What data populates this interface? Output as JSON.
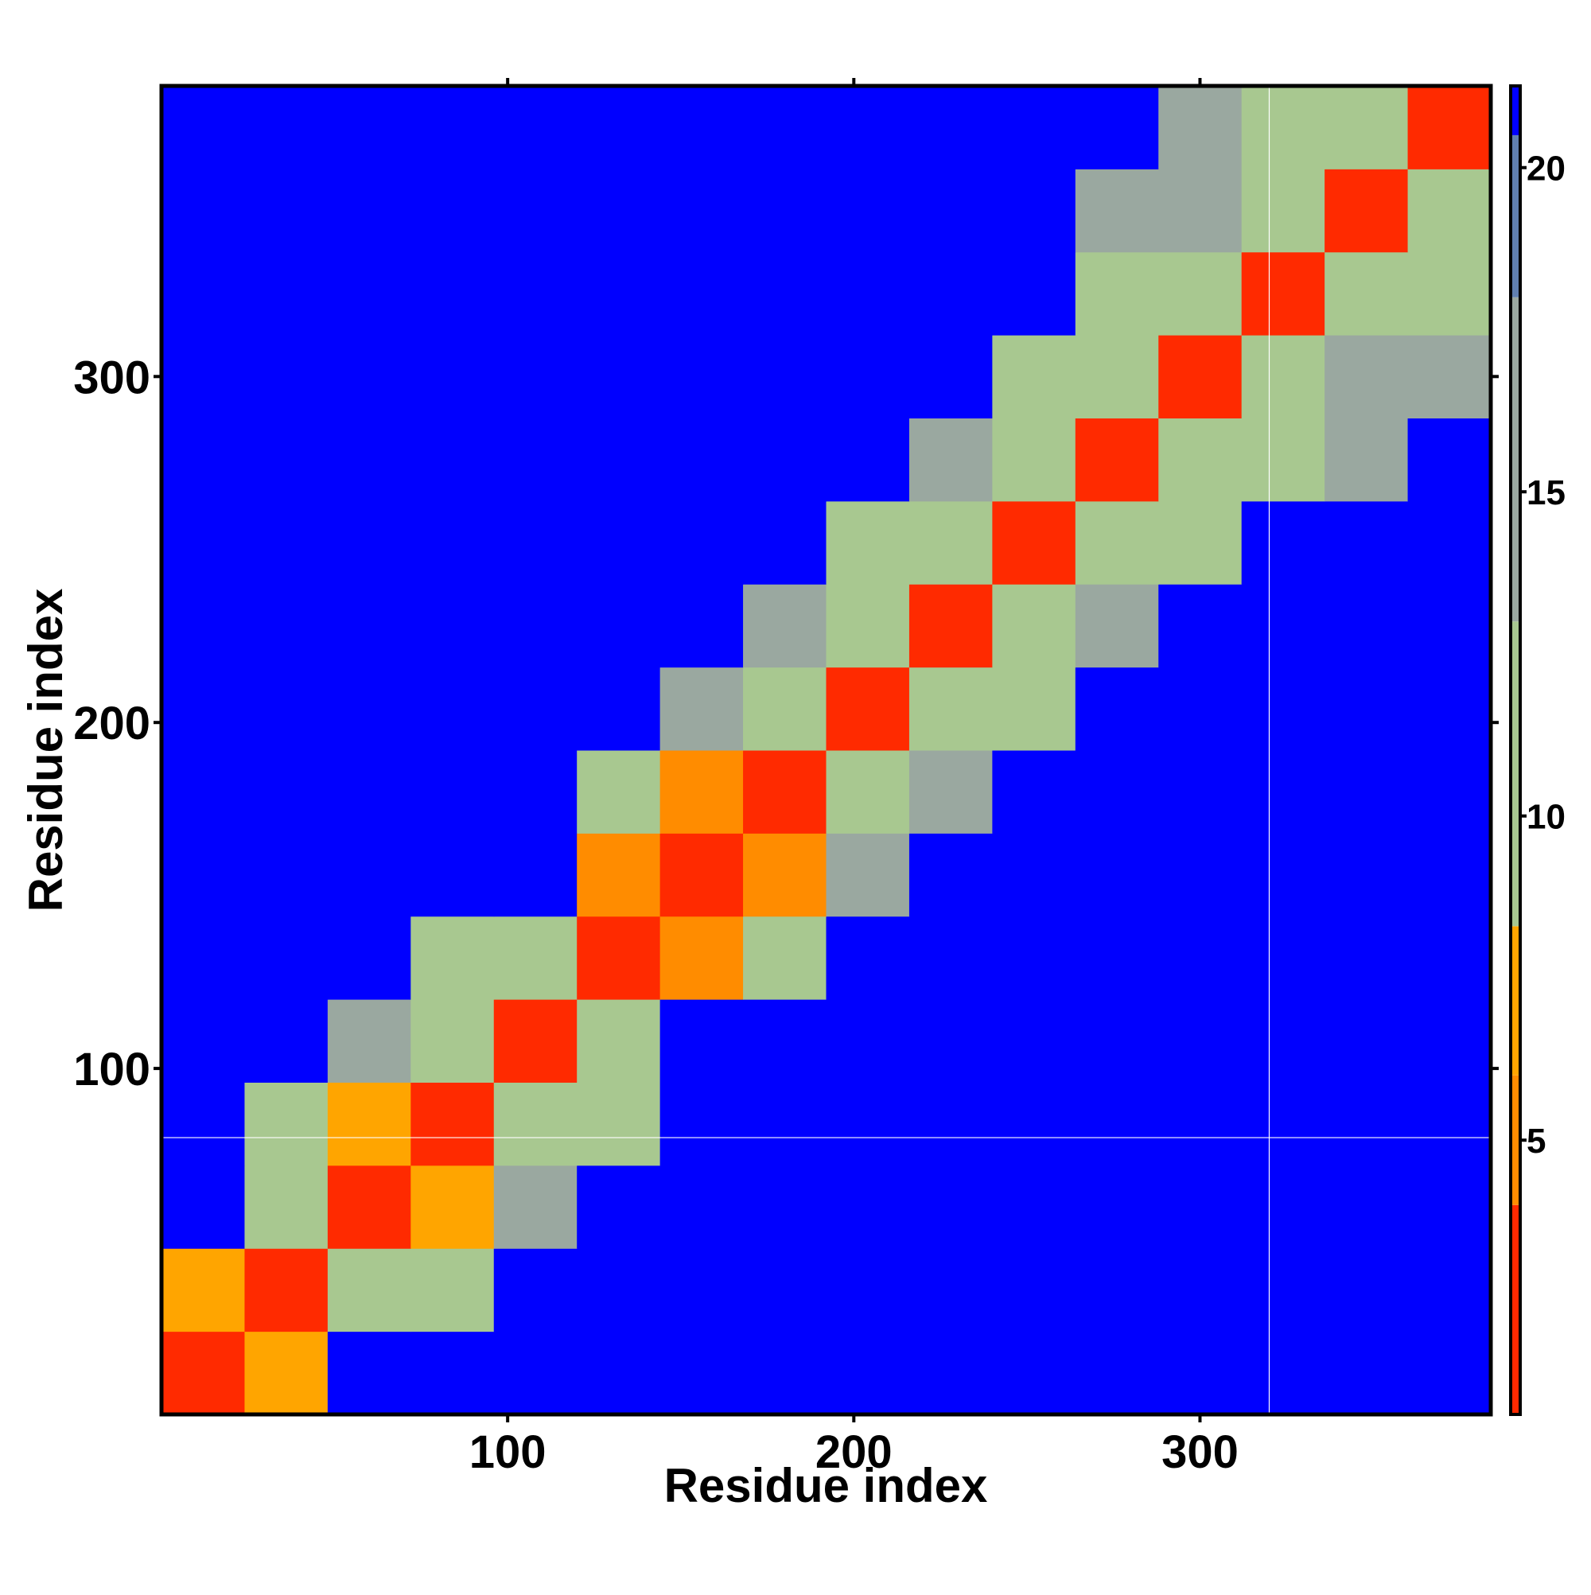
{
  "chart_data": {
    "type": "heatmap",
    "xlabel": "Residue index",
    "ylabel": "Residue index",
    "xlim": [
      0,
      384
    ],
    "ylim": [
      0,
      384
    ],
    "xticks": [
      100,
      200,
      300
    ],
    "yticks": [
      100,
      200,
      300
    ],
    "x_edges": [
      0,
      24,
      48,
      72,
      96,
      120,
      144,
      168,
      192,
      216,
      240,
      264,
      288,
      312,
      336,
      360,
      384
    ],
    "y_edges": [
      0,
      24,
      48,
      72,
      96,
      120,
      144,
      168,
      192,
      216,
      240,
      264,
      288,
      312,
      336,
      360,
      384
    ],
    "z": [
      [
        4,
        8,
        21,
        21,
        21,
        21,
        21,
        21,
        21,
        21,
        21,
        21,
        21,
        21,
        21,
        21
      ],
      [
        8,
        4,
        9,
        12,
        21,
        21,
        21,
        21,
        21,
        21,
        21,
        21,
        21,
        21,
        21,
        21
      ],
      [
        21,
        9,
        4,
        8,
        14,
        21,
        21,
        21,
        21,
        21,
        21,
        21,
        21,
        21,
        21,
        21
      ],
      [
        21,
        12,
        8,
        4,
        9,
        13,
        21,
        21,
        21,
        21,
        21,
        21,
        21,
        21,
        21,
        21
      ],
      [
        21,
        21,
        14,
        9,
        4,
        9,
        21,
        21,
        21,
        21,
        21,
        21,
        21,
        21,
        21,
        21
      ],
      [
        21,
        21,
        21,
        13,
        9,
        4,
        6,
        12,
        21,
        21,
        21,
        21,
        21,
        21,
        21,
        21
      ],
      [
        21,
        21,
        21,
        21,
        21,
        6,
        4,
        6,
        14,
        21,
        21,
        21,
        21,
        21,
        21,
        21
      ],
      [
        21,
        21,
        21,
        21,
        21,
        12,
        6,
        4,
        9,
        15,
        21,
        21,
        21,
        21,
        21,
        21
      ],
      [
        21,
        21,
        21,
        21,
        21,
        21,
        14,
        9,
        4,
        9,
        13,
        21,
        21,
        21,
        21,
        21
      ],
      [
        21,
        21,
        21,
        21,
        21,
        21,
        21,
        15,
        9,
        4,
        9,
        14,
        21,
        21,
        21,
        21
      ],
      [
        21,
        21,
        21,
        21,
        21,
        21,
        21,
        21,
        13,
        9,
        4,
        9,
        12,
        21,
        21,
        21
      ],
      [
        21,
        21,
        21,
        21,
        21,
        21,
        21,
        21,
        21,
        14,
        9,
        4,
        9,
        13,
        15,
        21
      ],
      [
        21,
        21,
        21,
        21,
        21,
        21,
        21,
        21,
        21,
        21,
        12,
        9,
        4,
        9,
        14,
        15
      ],
      [
        21,
        21,
        21,
        21,
        21,
        21,
        21,
        21,
        21,
        21,
        21,
        13,
        9,
        4,
        9,
        13
      ],
      [
        21,
        21,
        21,
        21,
        21,
        21,
        21,
        21,
        21,
        21,
        21,
        15,
        14,
        9,
        4,
        9
      ],
      [
        21,
        21,
        21,
        21,
        21,
        21,
        21,
        21,
        21,
        21,
        21,
        21,
        15,
        13,
        9,
        4
      ]
    ],
    "zlim": [
      0.77,
      21.26
    ],
    "zticks": [
      5,
      10,
      15,
      20
    ],
    "colorscale": [
      [
        0.77,
        "#e00000"
      ],
      [
        4,
        "#ff2a00"
      ],
      [
        6,
        "#ff8c00"
      ],
      [
        8.3,
        "#ffa500"
      ],
      [
        13,
        "#a8c890"
      ],
      [
        18,
        "#9aa8a0"
      ],
      [
        20.5,
        "#6080b0"
      ],
      [
        21.26,
        "#0000ff"
      ]
    ],
    "vlines": [
      320
    ],
    "hlines": [
      80
    ],
    "reference_line_color": "#ffffff"
  }
}
